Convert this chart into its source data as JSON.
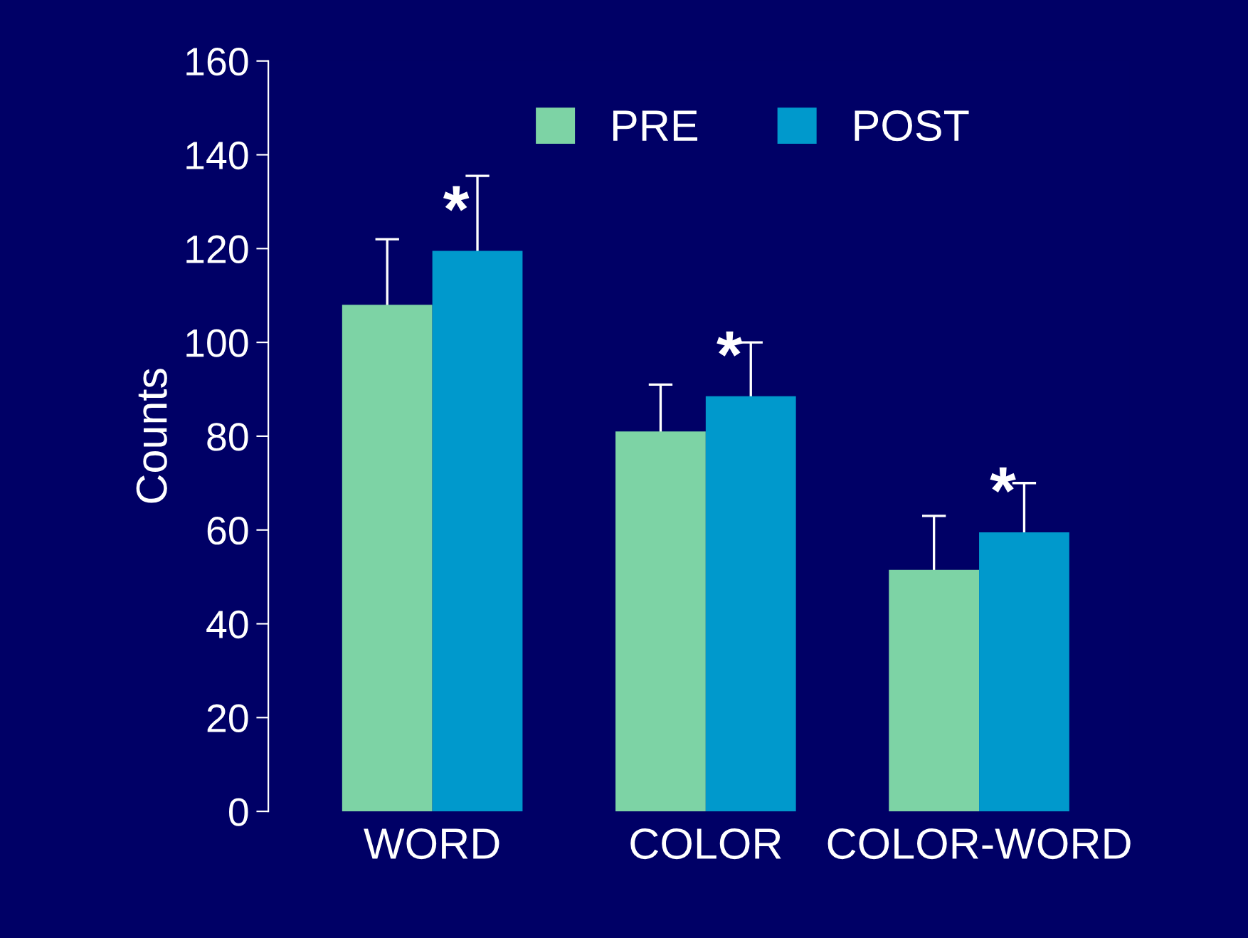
{
  "chart_data": {
    "type": "bar",
    "ylabel": "Counts",
    "categories": [
      "WORD",
      "COLOR",
      "COLOR-WORD"
    ],
    "series": [
      {
        "name": "PRE",
        "color": "#7dd3a5",
        "values": [
          108,
          81,
          51.5
        ],
        "errors": [
          14,
          10,
          11.5
        ]
      },
      {
        "name": "POST",
        "color": "#0099cc",
        "values": [
          119.5,
          88.5,
          59.5
        ],
        "errors": [
          16,
          11.5,
          10.5
        ]
      }
    ],
    "ylim": [
      0,
      160
    ],
    "yticks": [
      0,
      20,
      40,
      60,
      80,
      100,
      120,
      140,
      160
    ],
    "annotations": [
      {
        "text": "*",
        "x": "WORD",
        "y": 119.5
      },
      {
        "text": "*",
        "x": "COLOR",
        "y": 88.5
      },
      {
        "text": "*",
        "x": "COLOR-WORD",
        "y": 59.5
      }
    ],
    "legend": "top right",
    "grid": false
  }
}
